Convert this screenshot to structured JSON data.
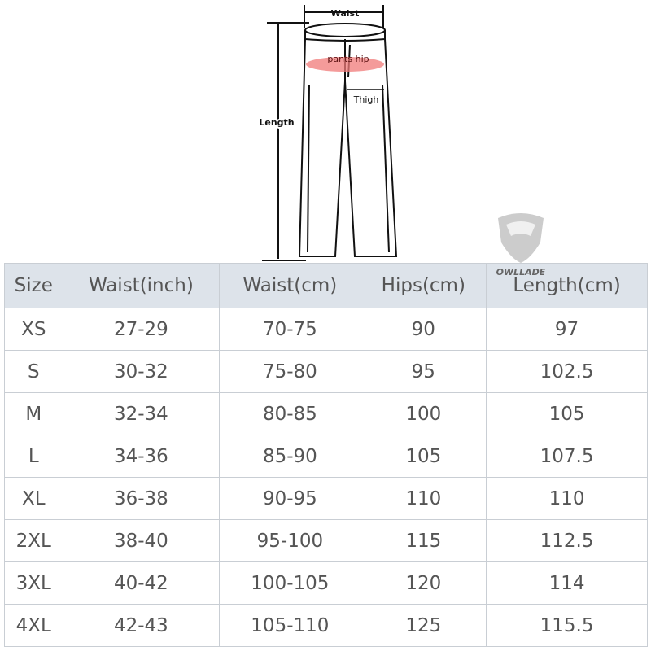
{
  "diagram": {
    "waist_label": "Waist",
    "length_label": "Length",
    "hip_label": "pants hip",
    "thigh_label": "Thigh"
  },
  "logo": {
    "brand": "OWLLADE"
  },
  "table": {
    "headers": [
      "Size",
      "Waist(inch)",
      "Waist(cm)",
      "Hips(cm)",
      "Length(cm)"
    ],
    "rows": [
      [
        "XS",
        "27-29",
        "70-75",
        "90",
        "97"
      ],
      [
        "S",
        "30-32",
        "75-80",
        "95",
        "102.5"
      ],
      [
        "M",
        "32-34",
        "80-85",
        "100",
        "105"
      ],
      [
        "L",
        "34-36",
        "85-90",
        "105",
        "107.5"
      ],
      [
        "XL",
        "36-38",
        "90-95",
        "110",
        "110"
      ],
      [
        "2XL",
        "38-40",
        "95-100",
        "115",
        "112.5"
      ],
      [
        "3XL",
        "40-42",
        "100-105",
        "120",
        "114"
      ],
      [
        "4XL",
        "42-43",
        "105-110",
        "125",
        "115.5"
      ]
    ]
  }
}
